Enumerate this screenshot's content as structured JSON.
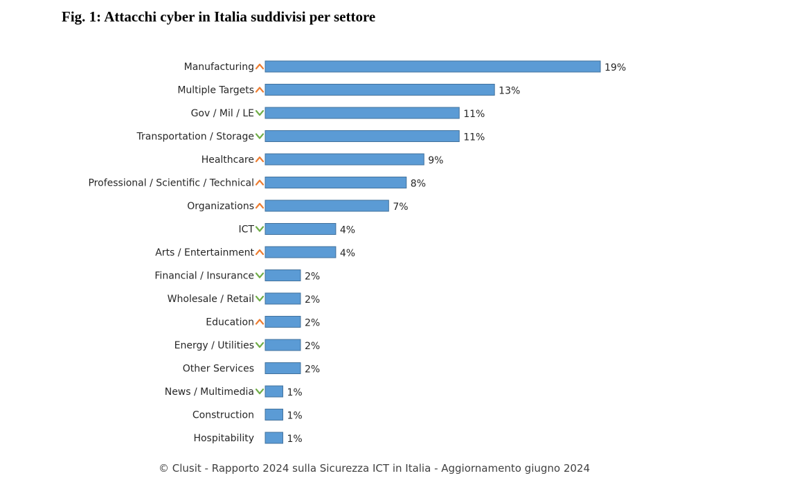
{
  "figure": {
    "title": "Fig. 1: Attacchi cyber in Italia suddivisi per settore",
    "caption": "© Clusit - Rapporto 2024 sulla Sicurezza ICT in Italia - Aggiornamento giugno 2024"
  },
  "colors": {
    "bar": "#5b9bd5",
    "bar_border": "#41719c",
    "trend_up": "#ed7d31",
    "trend_down": "#70ad47"
  },
  "chart_data": {
    "type": "bar",
    "orientation": "horizontal",
    "title": "",
    "xlabel": "",
    "ylabel": "",
    "xlim": [
      0,
      19
    ],
    "grid": false,
    "legend": "none",
    "categories": [
      "Manufacturing",
      "Multiple Targets",
      "Gov / Mil / LE",
      "Transportation / Storage",
      "Healthcare",
      "Professional / Scientific / Technical",
      "Organizations",
      "ICT",
      "Arts / Entertainment",
      "Financial / Insurance",
      "Wholesale / Retail",
      "Education",
      "Energy / Utilities",
      "Other Services",
      "News / Multimedia",
      "Construction",
      "Hospitability"
    ],
    "values": [
      19,
      13,
      11,
      11,
      9,
      8,
      7,
      4,
      4,
      2,
      2,
      2,
      2,
      2,
      1,
      1,
      1
    ],
    "value_labels": [
      "19%",
      "13%",
      "11%",
      "11%",
      "9%",
      "8%",
      "7%",
      "4%",
      "4%",
      "2%",
      "2%",
      "2%",
      "2%",
      "2%",
      "1%",
      "1%",
      "1%"
    ],
    "trend": [
      "up",
      "up",
      "down",
      "down",
      "up",
      "up",
      "up",
      "down",
      "up",
      "down",
      "down",
      "up",
      "down",
      "none",
      "down",
      "none",
      "none"
    ]
  }
}
